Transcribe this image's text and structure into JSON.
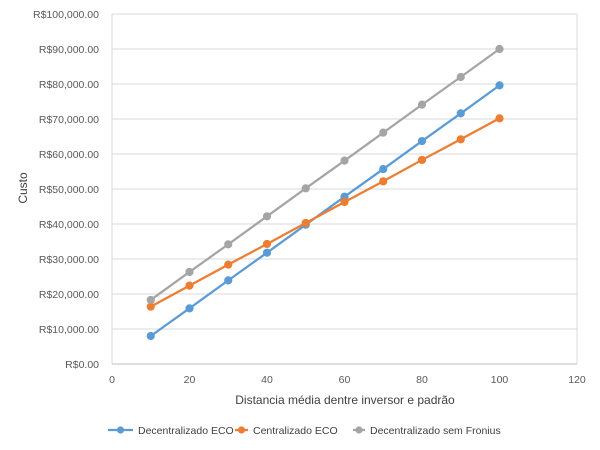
{
  "chart_data": {
    "type": "line",
    "title": "",
    "xlabel": "Distancia média dentre inversor e padrão",
    "ylabel": "Custo",
    "xlim": [
      0,
      120
    ],
    "ylim": [
      0,
      100000
    ],
    "x_ticks": [
      0,
      20,
      40,
      60,
      80,
      100,
      120
    ],
    "x_tick_labels": [
      "0",
      "20",
      "40",
      "60",
      "80",
      "100",
      "120"
    ],
    "y_ticks": [
      0,
      10000,
      20000,
      30000,
      40000,
      50000,
      60000,
      70000,
      80000,
      90000,
      100000
    ],
    "y_tick_labels": [
      "R$0.00",
      "R$10,000.00",
      "R$20,000.00",
      "R$30,000.00",
      "R$40,000.00",
      "R$50,000.00",
      "R$60,000.00",
      "R$70,000.00",
      "R$80,000.00",
      "R$90,000.00",
      "R$100,000.00"
    ],
    "grid": "horizontal",
    "legend_position": "bottom",
    "x": [
      10,
      20,
      30,
      40,
      50,
      60,
      70,
      80,
      90,
      100
    ],
    "series": [
      {
        "name": "Decentralizado ECO",
        "color": "#5b9bd5",
        "values": [
          8000,
          15900,
          23900,
          31800,
          39800,
          47800,
          55700,
          63700,
          71600,
          79600
        ]
      },
      {
        "name": "Centralizado ECO",
        "color": "#ed7d31",
        "values": [
          16400,
          22400,
          28400,
          34300,
          40300,
          46300,
          52200,
          58300,
          64200,
          70200
        ]
      },
      {
        "name": "Decentralizado sem Fronius",
        "color": "#a5a5a5",
        "values": [
          18300,
          26300,
          34200,
          42200,
          50200,
          58100,
          66100,
          74100,
          82000,
          90000
        ]
      }
    ]
  }
}
